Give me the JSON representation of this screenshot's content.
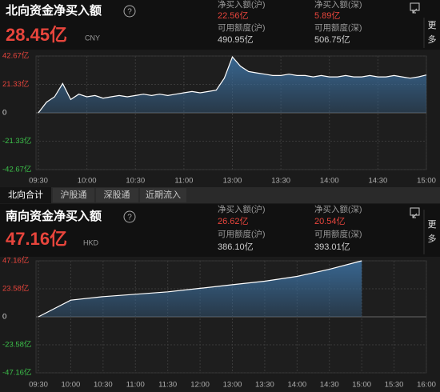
{
  "north": {
    "title": "北向资金净买入额",
    "help": "?",
    "net": "28.45亿",
    "currency": "CNY",
    "stats": [
      [
        {
          "label": "净买入额(沪)",
          "value": "22.56亿"
        },
        {
          "label": "可用额度(沪)",
          "value": "490.95亿"
        }
      ],
      [
        {
          "label": "净买入额(深)",
          "value": "5.89亿"
        },
        {
          "label": "可用额度(深)",
          "value": "506.75亿"
        }
      ]
    ],
    "more": [
      "更",
      "多"
    ]
  },
  "tabs": [
    "北向合计",
    "沪股通",
    "深股通",
    "近期流入"
  ],
  "south": {
    "title": "南向资金净买入额",
    "help": "?",
    "net": "47.16亿",
    "currency": "HKD",
    "stats": [
      [
        {
          "label": "净买入额(沪)",
          "value": "26.62亿"
        },
        {
          "label": "可用额度(沪)",
          "value": "386.10亿"
        }
      ],
      [
        {
          "label": "净买入额(深)",
          "value": "20.54亿"
        },
        {
          "label": "可用额度(深)",
          "value": "393.01亿"
        }
      ]
    ],
    "more": [
      "更",
      "多"
    ]
  },
  "chart_data": [
    {
      "type": "area",
      "color": "#3a6a96",
      "grid": true,
      "x": [
        "09:30",
        "09:35",
        "09:40",
        "09:45",
        "09:50",
        "09:55",
        "10:00",
        "10:05",
        "10:10",
        "10:15",
        "10:20",
        "10:25",
        "10:30",
        "10:35",
        "10:40",
        "10:45",
        "10:50",
        "10:55",
        "11:00",
        "11:05",
        "11:10",
        "11:15",
        "11:20",
        "11:25",
        "13:00",
        "13:05",
        "13:10",
        "13:15",
        "13:20",
        "13:25",
        "13:30",
        "13:35",
        "13:40",
        "13:45",
        "13:50",
        "13:55",
        "14:00",
        "14:05",
        "14:10",
        "14:15",
        "14:20",
        "14:25",
        "14:30",
        "14:35",
        "14:40",
        "14:45",
        "14:50",
        "14:55",
        "15:00"
      ],
      "values": [
        0,
        8,
        12,
        22,
        10,
        14,
        12,
        13,
        11,
        12,
        13,
        12,
        13,
        14,
        13,
        14,
        13,
        14,
        15,
        16,
        15,
        16,
        17,
        26,
        42,
        35,
        31,
        30,
        29,
        28,
        28,
        29,
        28,
        28,
        27,
        28,
        27,
        27,
        28,
        27,
        27,
        28,
        27,
        27,
        28,
        27,
        26,
        27,
        28.45
      ],
      "ylim": [
        -42.67,
        42.67
      ],
      "yticks": [
        {
          "value": 42.67,
          "label": "42.67亿"
        },
        {
          "value": 21.33,
          "label": "21.33亿"
        },
        0,
        {
          "value": -21.33,
          "label": "-21.33亿"
        },
        {
          "value": -42.67,
          "label": "-42.67亿"
        }
      ],
      "xticks": [
        "09:30",
        "10:00",
        "10:30",
        "11:00",
        "13:00",
        "13:30",
        "14:00",
        "14:30",
        "15:00"
      ]
    },
    {
      "type": "area",
      "color": "#3a6a96",
      "grid": true,
      "x": [
        "09:30",
        "10:00",
        "10:30",
        "11:00",
        "11:30",
        "12:00",
        "13:00",
        "13:30",
        "14:00",
        "14:30",
        "15:00",
        "15:30",
        "16:00"
      ],
      "values": [
        0,
        14,
        17,
        19,
        21,
        24,
        27,
        30,
        34,
        40,
        47.16,
        null,
        null
      ],
      "ylim": [
        -47.16,
        47.16
      ],
      "yticks": [
        {
          "value": 47.16,
          "label": "47.16亿"
        },
        {
          "value": 23.58,
          "label": "23.58亿"
        },
        0,
        {
          "value": -23.58,
          "label": "-23.58亿"
        },
        {
          "value": -47.16,
          "label": "-47.16亿"
        }
      ],
      "xticks": [
        "09:30",
        "10:00",
        "10:30",
        "11:00",
        "11:30",
        "12:00",
        "13:00",
        "13:30",
        "14:00",
        "14:30",
        "15:00",
        "15:30",
        "16:00"
      ]
    }
  ]
}
